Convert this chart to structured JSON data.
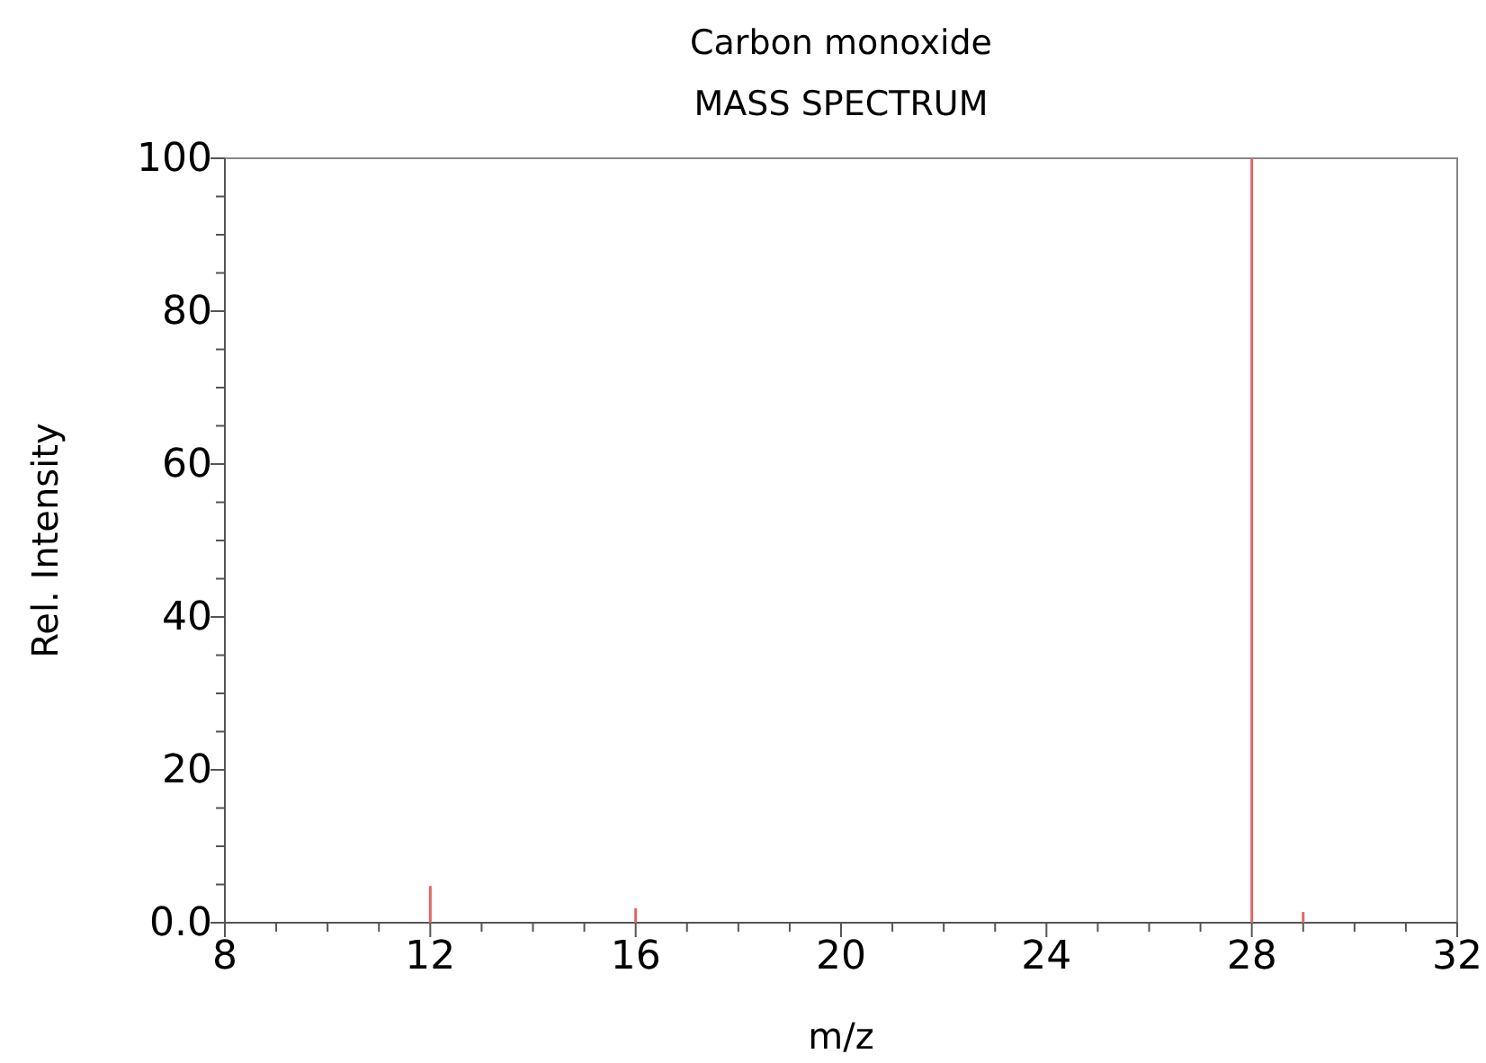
{
  "chart_data": {
    "type": "bar",
    "title": "Carbon monoxide",
    "subtitle": "MASS SPECTRUM",
    "xlabel": "m/z",
    "ylabel": "Rel. Intensity",
    "x": [
      12,
      16,
      28,
      29
    ],
    "values": [
      4.8,
      1.9,
      100,
      1.4
    ],
    "color": "#e06666",
    "xlim": [
      8,
      32
    ],
    "xticks": [
      8,
      {
        "value": 9,
        "label": null
      },
      {
        "value": 10,
        "label": null
      },
      {
        "value": 11,
        "label": null
      },
      12,
      {
        "value": 13,
        "label": null
      },
      {
        "value": 14,
        "label": null
      },
      {
        "value": 15,
        "label": null
      },
      16,
      {
        "value": 17,
        "label": null
      },
      {
        "value": 18,
        "label": null
      },
      {
        "value": 19,
        "label": null
      },
      20,
      {
        "value": 21,
        "label": null
      },
      {
        "value": 22,
        "label": null
      },
      {
        "value": 23,
        "label": null
      },
      24,
      {
        "value": 25,
        "label": null
      },
      {
        "value": 26,
        "label": null
      },
      {
        "value": 27,
        "label": null
      },
      28,
      {
        "value": 29,
        "label": null
      },
      {
        "value": 30,
        "label": null
      },
      {
        "value": 31,
        "label": null
      },
      32
    ],
    "ylim": [
      0,
      100
    ],
    "yticks": [
      {
        "value": 0,
        "label": "0.0"
      },
      {
        "value": 5,
        "label": null
      },
      {
        "value": 10,
        "label": null
      },
      {
        "value": 15,
        "label": null
      },
      20,
      {
        "value": 25,
        "label": null
      },
      {
        "value": 30,
        "label": null
      },
      {
        "value": 35,
        "label": null
      },
      40,
      {
        "value": 45,
        "label": null
      },
      {
        "value": 50,
        "label": null
      },
      {
        "value": 55,
        "label": null
      },
      60,
      {
        "value": 65,
        "label": null
      },
      {
        "value": 70,
        "label": null
      },
      {
        "value": 75,
        "label": null
      },
      80,
      {
        "value": 85,
        "label": null
      },
      {
        "value": 90,
        "label": null
      },
      {
        "value": 95,
        "label": null
      },
      100
    ]
  }
}
